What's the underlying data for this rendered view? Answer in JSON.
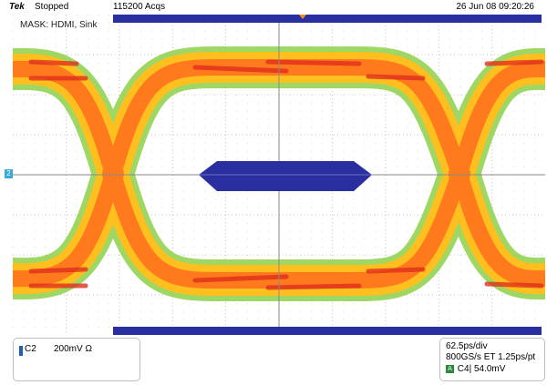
{
  "status_bar": {
    "brand": "Tek",
    "run_state": "Stopped",
    "acquisitions": "115200 Acqs",
    "datetime": "26 Jun 08 09:20:26"
  },
  "display": {
    "mask_label": "MASK: HDMI, Sink",
    "channel_marker": "2",
    "grid_divisions": {
      "x": 10,
      "y": 8
    },
    "colors": {
      "mask": "#2a2fa0",
      "persistence_low": "#8ed14a",
      "persistence_mid": "#ffbf1f",
      "persistence_high": "#ff7a1c",
      "persistence_peak": "#e0301c",
      "trigger_marker": "#f28c1e",
      "channel_marker": "#3aa9d8"
    }
  },
  "channel_panel": {
    "channel": "C2",
    "scale": "200mV Ω"
  },
  "timebase_panel": {
    "time_per_div": "62.5ps/div",
    "sample_info": "800GS/s ET 1.25ps/pt",
    "trigger_icon": "A",
    "trigger_source": "C4",
    "trigger_slope_icon": "rising-edge-icon",
    "trigger_level": "54.0mV"
  }
}
